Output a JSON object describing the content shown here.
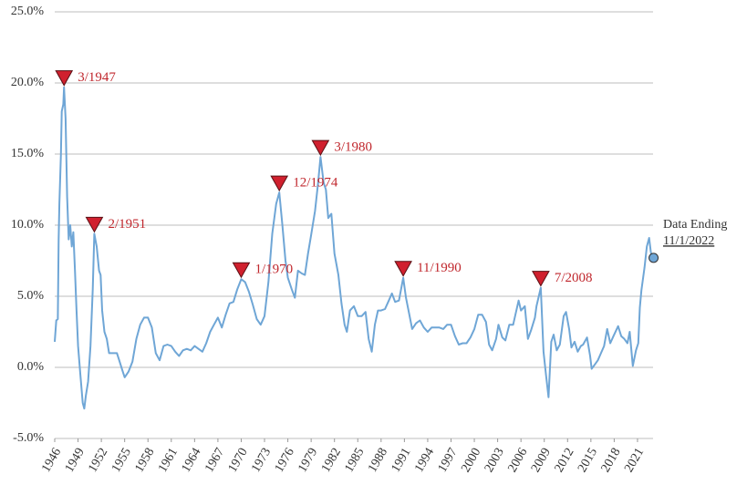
{
  "chart_data": {
    "type": "line",
    "xlim": [
      1946,
      2023
    ],
    "xticks": [
      1946,
      1949,
      1952,
      1955,
      1958,
      1961,
      1964,
      1967,
      1970,
      1973,
      1976,
      1979,
      1982,
      1985,
      1988,
      1991,
      1994,
      1997,
      2000,
      2003,
      2006,
      2009,
      2012,
      2015,
      2018,
      2021
    ],
    "ylim": [
      -5,
      25
    ],
    "yticks": [
      {
        "value": -5,
        "label": "-5.0%"
      },
      {
        "value": 0,
        "label": "0.0%"
      },
      {
        "value": 5,
        "label": "5.0%"
      },
      {
        "value": 10,
        "label": "10.0%"
      },
      {
        "value": 15,
        "label": "15.0%"
      },
      {
        "value": 20,
        "label": "20.0%"
      },
      {
        "value": 25,
        "label": "25.0%"
      }
    ],
    "grid": true,
    "series": [
      {
        "color": "#6fa6d6",
        "x": [
          1946.0,
          1946.2,
          1946.4,
          1946.5,
          1946.6,
          1946.8,
          1946.9,
          1947.1,
          1947.2,
          1947.4,
          1947.6,
          1947.8,
          1948.0,
          1948.2,
          1948.4,
          1948.6,
          1948.8,
          1949.0,
          1949.3,
          1949.6,
          1949.8,
          1950.0,
          1950.3,
          1950.6,
          1950.9,
          1951.1,
          1951.4,
          1951.7,
          1951.9,
          1952.1,
          1952.4,
          1952.7,
          1953.0,
          1953.5,
          1954.0,
          1954.3,
          1954.7,
          1955.0,
          1955.5,
          1956.0,
          1956.5,
          1957.0,
          1957.5,
          1958.0,
          1958.5,
          1959.0,
          1959.5,
          1960.0,
          1960.5,
          1961.0,
          1961.5,
          1962.0,
          1962.5,
          1963.0,
          1963.5,
          1964.0,
          1964.5,
          1965.0,
          1965.5,
          1966.0,
          1966.5,
          1967.0,
          1967.5,
          1968.0,
          1968.5,
          1969.0,
          1969.5,
          1970.0,
          1970.5,
          1971.0,
          1971.5,
          1972.0,
          1972.5,
          1973.0,
          1973.5,
          1974.0,
          1974.5,
          1974.9,
          1975.3,
          1975.7,
          1976.0,
          1976.5,
          1976.9,
          1977.3,
          1977.8,
          1978.2,
          1978.6,
          1979.0,
          1979.5,
          1979.9,
          1980.2,
          1980.6,
          1980.9,
          1981.2,
          1981.6,
          1982.0,
          1982.5,
          1982.9,
          1983.3,
          1983.6,
          1984.0,
          1984.5,
          1985.0,
          1985.5,
          1986.0,
          1986.4,
          1986.8,
          1987.2,
          1987.6,
          1988.0,
          1988.5,
          1989.0,
          1989.4,
          1989.8,
          1990.3,
          1990.85,
          1991.2,
          1991.6,
          1992.0,
          1992.5,
          1993.0,
          1993.5,
          1994.0,
          1994.5,
          1995.0,
          1995.5,
          1996.0,
          1996.5,
          1997.0,
          1997.5,
          1998.0,
          1998.5,
          1999.0,
          1999.5,
          2000.0,
          2000.5,
          2001.0,
          2001.5,
          2001.9,
          2002.3,
          2002.8,
          2003.1,
          2003.6,
          2004.0,
          2004.5,
          2005.0,
          2005.7,
          2006.0,
          2006.5,
          2006.9,
          2007.3,
          2007.8,
          2008.0,
          2008.55,
          2008.9,
          2009.2,
          2009.55,
          2009.9,
          2010.2,
          2010.6,
          2011.0,
          2011.5,
          2011.8,
          2012.2,
          2012.5,
          2012.9,
          2013.3,
          2013.7,
          2014.0,
          2014.5,
          2014.9,
          2015.1,
          2015.5,
          2015.9,
          2016.3,
          2016.7,
          2017.1,
          2017.5,
          2017.9,
          2018.5,
          2018.9,
          2019.3,
          2019.7,
          2020.0,
          2020.4,
          2020.8,
          2021.1,
          2021.3,
          2021.5,
          2021.9,
          2022.2,
          2022.5,
          2022.7,
          2022.83
        ],
        "values": [
          1.8,
          3.3,
          3.4,
          9.0,
          11.5,
          15,
          18.0,
          18.5,
          19.7,
          17.5,
          12,
          9,
          10,
          8.5,
          9.5,
          6.8,
          4,
          1.5,
          -0.5,
          -2.5,
          -2.9,
          -2.0,
          -1,
          1.5,
          5.5,
          9.4,
          8.5,
          6.8,
          6.5,
          4.0,
          2.5,
          2.0,
          1.0,
          1.0,
          1.0,
          0.5,
          -0.2,
          -0.7,
          -0.3,
          0.4,
          2.0,
          3.0,
          3.5,
          3.5,
          2.8,
          1.0,
          0.5,
          1.5,
          1.6,
          1.5,
          1.1,
          0.8,
          1.2,
          1.3,
          1.2,
          1.5,
          1.3,
          1.1,
          1.7,
          2.5,
          3.0,
          3.5,
          2.8,
          3.7,
          4.5,
          4.6,
          5.5,
          6.2,
          6.0,
          5.3,
          4.4,
          3.4,
          3.0,
          3.6,
          6.0,
          9.4,
          11.5,
          12.3,
          10.0,
          7.5,
          6.3,
          5.5,
          4.9,
          6.8,
          6.6,
          6.5,
          8.0,
          9.3,
          11.0,
          13.0,
          14.8,
          13.0,
          12.5,
          10.5,
          10.8,
          8.0,
          6.5,
          4.5,
          3.0,
          2.5,
          4.0,
          4.3,
          3.6,
          3.6,
          3.9,
          2.0,
          1.1,
          3.0,
          4.0,
          4.0,
          4.1,
          4.7,
          5.2,
          4.6,
          4.7,
          6.3,
          4.9,
          3.8,
          2.7,
          3.1,
          3.3,
          2.8,
          2.5,
          2.8,
          2.8,
          2.8,
          2.7,
          3.0,
          3.0,
          2.2,
          1.6,
          1.7,
          1.7,
          2.1,
          2.7,
          3.7,
          3.7,
          3.2,
          1.6,
          1.2,
          2.0,
          3.0,
          2.1,
          1.9,
          3.0,
          3.0,
          4.7,
          4.0,
          4.3,
          2.0,
          2.6,
          3.5,
          4.3,
          5.6,
          1.1,
          -0.4,
          -2.1,
          1.8,
          2.3,
          1.2,
          1.6,
          3.6,
          3.9,
          2.7,
          1.4,
          1.8,
          1.1,
          1.5,
          1.6,
          2.1,
          0.8,
          -0.1,
          0.2,
          0.5,
          1.0,
          1.5,
          2.7,
          1.7,
          2.2,
          2.9,
          2.2,
          2.0,
          1.7,
          2.5,
          0.1,
          1.2,
          1.7,
          4.2,
          5.4,
          7.0,
          8.5,
          9.1,
          8.2,
          7.7
        ]
      }
    ],
    "annotations": [
      {
        "label": "3/1947",
        "x": 1947.2,
        "y": 19.7
      },
      {
        "label": "2/1951",
        "x": 1951.1,
        "y": 9.4
      },
      {
        "label": "1/1970",
        "x": 1970.0,
        "y": 6.2
      },
      {
        "label": "12/1974",
        "x": 1974.9,
        "y": 12.3
      },
      {
        "label": "3/1980",
        "x": 1980.2,
        "y": 14.8
      },
      {
        "label": "11/1990",
        "x": 1990.85,
        "y": 6.3
      },
      {
        "label": "7/2008",
        "x": 2008.55,
        "y": 5.6
      }
    ],
    "end_point": {
      "label": "Data Ending",
      "date": "11/1/2022",
      "x": 2022.83,
      "y": 7.7
    }
  }
}
